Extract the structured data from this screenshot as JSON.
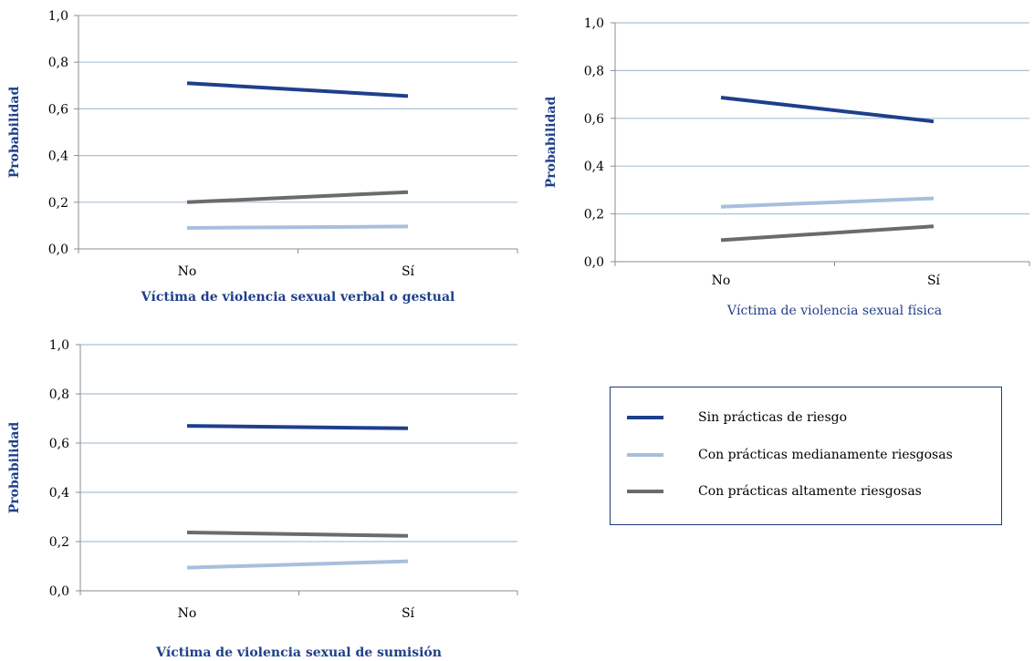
{
  "chart_data": [
    {
      "type": "line",
      "categories": [
        "No",
        "Sí"
      ],
      "ylabel": "Probabilidad",
      "xlabel": "Víctima de violencia sexual verbal o gestual",
      "ylim": [
        0,
        1
      ],
      "yticks": [
        "0,0",
        "0,2",
        "0,4",
        "0,6",
        "0,8",
        "1,0"
      ],
      "grid": true,
      "series": [
        {
          "name": "Sin prácticas de riesgo",
          "values": [
            0.71,
            0.655
          ],
          "color": "#1e3f8c"
        },
        {
          "name": "Con prácticas altamente riesgosas",
          "values": [
            0.2,
            0.243
          ],
          "color": "#6b6b6b"
        },
        {
          "name": "Con prácticas medianamente riesgosas",
          "values": [
            0.09,
            0.096
          ],
          "color": "#a7bfdc"
        }
      ]
    },
    {
      "type": "line",
      "categories": [
        "No",
        "Sí"
      ],
      "ylabel": "Probabilidad",
      "xlabel": "Víctima de violencia sexual física",
      "ylim": [
        0,
        1
      ],
      "yticks": [
        "0,0",
        "0,2",
        "0,4",
        "0,6",
        "0,8",
        "1,0"
      ],
      "grid": true,
      "series": [
        {
          "name": "Sin prácticas de riesgo",
          "values": [
            0.687,
            0.587
          ],
          "color": "#1e3f8c"
        },
        {
          "name": "Con prácticas medianamente riesgosas",
          "values": [
            0.23,
            0.265
          ],
          "color": "#a7bfdc"
        },
        {
          "name": "Con prácticas altamente riesgosas",
          "values": [
            0.09,
            0.148
          ],
          "color": "#6b6b6b"
        }
      ]
    },
    {
      "type": "line",
      "categories": [
        "No",
        "Sí"
      ],
      "ylabel": "Probabilidad",
      "xlabel": "Víctima de violencia sexual de sumisión",
      "ylim": [
        0,
        1
      ],
      "yticks": [
        "0,0",
        "0,2",
        "0,4",
        "0,6",
        "0,8",
        "1,0"
      ],
      "grid": true,
      "series": [
        {
          "name": "Sin prácticas de riesgo",
          "values": [
            0.67,
            0.66
          ],
          "color": "#1e3f8c"
        },
        {
          "name": "Con prácticas altamente riesgosas",
          "values": [
            0.237,
            0.223
          ],
          "color": "#6b6b6b"
        },
        {
          "name": "Con prácticas medianamente riesgosas",
          "values": [
            0.094,
            0.12
          ],
          "color": "#a7bfdc"
        }
      ]
    }
  ],
  "legend": {
    "placement": "bottom-right",
    "items": [
      {
        "label": "Sin prácticas de riesgo",
        "color": "#1e3f8c"
      },
      {
        "label": "Con prácticas medianamente riesgosas",
        "color": "#a7bfdc"
      },
      {
        "label": "Con prácticas altamente riesgosas",
        "color": "#6b6b6b"
      }
    ]
  },
  "colors": {
    "grid": "#a9c2d6",
    "axis": "#8c8c8c",
    "label": "#1f3f8a"
  }
}
